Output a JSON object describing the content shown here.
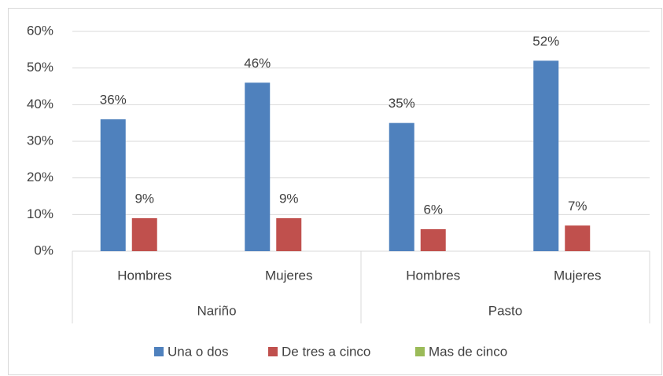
{
  "chart_data": {
    "type": "bar",
    "categories": [
      "Hombres",
      "Mujeres",
      "Hombres",
      "Mujeres"
    ],
    "groups": [
      "Nariño",
      "Pasto"
    ],
    "series": [
      {
        "name": "Una o dos",
        "color": "#4f81bd",
        "values": [
          36,
          46,
          35,
          52
        ],
        "value_labels": [
          "36%",
          "46%",
          "35%",
          "52%"
        ]
      },
      {
        "name": "De tres a cinco",
        "color": "#c0504d",
        "values": [
          9,
          9,
          6,
          7
        ],
        "value_labels": [
          "9%",
          "9%",
          "6%",
          "7%"
        ]
      },
      {
        "name": "Mas de cinco",
        "color": "#9bbb59",
        "values": [
          null,
          null,
          null,
          null
        ]
      }
    ],
    "ylim": [
      0,
      60
    ],
    "yticks": [
      {
        "value": 0,
        "label": "0%"
      },
      {
        "value": 10,
        "label": "10%"
      },
      {
        "value": 20,
        "label": "20%"
      },
      {
        "value": 30,
        "label": "30%"
      },
      {
        "value": 40,
        "label": "40%"
      },
      {
        "value": 50,
        "label": "50%"
      },
      {
        "value": 60,
        "label": "60%"
      }
    ],
    "grid": true,
    "legend": "bottom"
  }
}
